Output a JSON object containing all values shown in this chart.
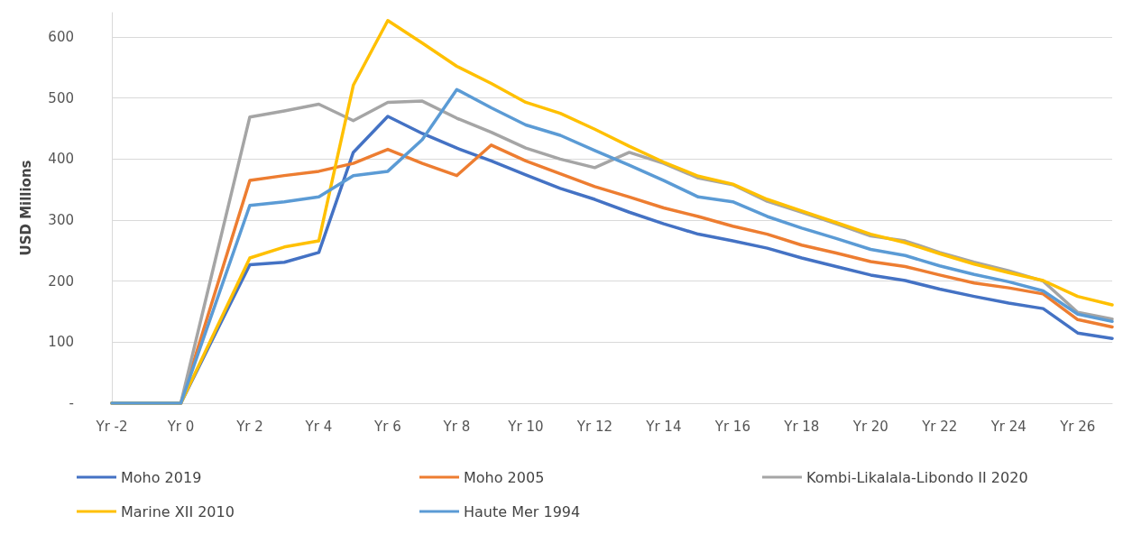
{
  "chart_data": {
    "type": "line",
    "ylabel": "USD Millions",
    "categories": [
      "Yr -2",
      null,
      "Yr 0",
      null,
      "Yr 2",
      null,
      "Yr 4",
      null,
      "Yr 6",
      null,
      "Yr 8",
      null,
      "Yr 10",
      null,
      "Yr 12",
      null,
      "Yr 14",
      null,
      "Yr 16",
      null,
      "Yr 18",
      null,
      "Yr 20",
      null,
      "Yr 22",
      null,
      "Yr 24",
      null,
      "Yr 26",
      null
    ],
    "series": [
      {
        "name": "Moho 2019",
        "color": "#4472c4",
        "values": [
          0,
          0,
          0,
          114,
          227,
          231,
          247,
          411,
          470,
          442,
          418,
          397,
          374,
          352,
          334,
          313,
          294,
          277,
          266,
          254,
          238,
          224,
          210,
          201,
          187,
          175,
          164,
          155,
          115,
          106
        ]
      },
      {
        "name": "Moho 2005",
        "color": "#ed7d31",
        "values": [
          0,
          0,
          0,
          183,
          365,
          373,
          380,
          393,
          416,
          393,
          373,
          423,
          397,
          376,
          355,
          338,
          320,
          306,
          290,
          277,
          259,
          246,
          232,
          224,
          210,
          197,
          189,
          179,
          137,
          125
        ]
      },
      {
        "name": "Kombi-Likalala-Libondo II 2020",
        "color": "#a5a5a5",
        "values": [
          0,
          0,
          0,
          235,
          469,
          479,
          490,
          463,
          493,
          495,
          467,
          444,
          418,
          400,
          386,
          411,
          393,
          369,
          358,
          331,
          313,
          294,
          274,
          266,
          247,
          231,
          217,
          200,
          149,
          138
        ]
      },
      {
        "name": "Marine XII 2010",
        "color": "#ffc000",
        "values": [
          0,
          0,
          0,
          119,
          238,
          256,
          266,
          521,
          627,
          590,
          552,
          524,
          493,
          475,
          449,
          421,
          395,
          372,
          359,
          334,
          315,
          296,
          277,
          263,
          245,
          228,
          214,
          201,
          175,
          161
        ]
      },
      {
        "name": "Haute Mer 1994",
        "color": "#5b9bd5",
        "values": [
          0,
          0,
          0,
          162,
          324,
          330,
          338,
          373,
          380,
          432,
          514,
          484,
          456,
          439,
          414,
          390,
          365,
          338,
          330,
          306,
          287,
          270,
          252,
          242,
          225,
          211,
          199,
          184,
          146,
          134
        ]
      }
    ],
    "ylim": [
      0,
      640
    ],
    "yticks": [
      {
        "value": 0,
        "label": "-"
      },
      100,
      200,
      300,
      400,
      500,
      600
    ],
    "grid": "y",
    "legend": "bottom",
    "marker": "none",
    "line_style": "solid"
  }
}
